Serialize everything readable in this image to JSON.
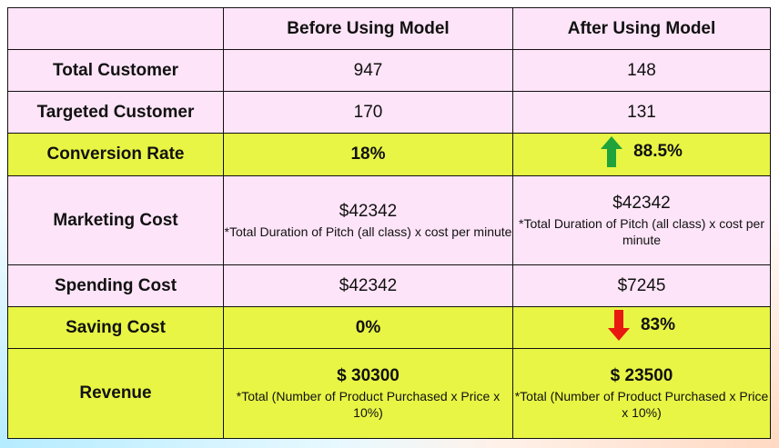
{
  "header": {
    "col_empty": "",
    "col_before": "Before Using Model",
    "col_after": "After Using Model"
  },
  "rows": {
    "total_customer": {
      "label": "Total Customer",
      "before": "947",
      "after": "148"
    },
    "targeted_customer": {
      "label": "Targeted Customer",
      "before": "170",
      "after": "131"
    },
    "conversion_rate": {
      "label": "Conversion Rate",
      "before": "18%",
      "after": "88.5%",
      "after_trend": "up"
    },
    "marketing_cost": {
      "label": "Marketing Cost",
      "before": "$42342",
      "before_note": "*Total Duration of Pitch (all class) x cost per minute",
      "after": "$42342",
      "after_note": "*Total Duration of Pitch (all class) x cost per minute"
    },
    "spending_cost": {
      "label": "Spending Cost",
      "before": "$42342",
      "after": "$7245"
    },
    "saving_cost": {
      "label": "Saving Cost",
      "before": "0%",
      "after": "83%",
      "after_trend": "down"
    },
    "revenue": {
      "label": "Revenue",
      "before": "$ 30300",
      "before_note": "*Total (Number of Product Purchased x Price x 10%)",
      "after": "$ 23500",
      "after_note": "*Total (Number of Product Purchased x Price x 10%)"
    }
  },
  "colors": {
    "pink_row": "#fde4f8",
    "highlight_row": "#e8f545",
    "up_arrow": "#1fa33a",
    "down_arrow": "#e8190e"
  },
  "icons": {
    "up": "arrow-up-icon",
    "down": "arrow-down-icon"
  }
}
